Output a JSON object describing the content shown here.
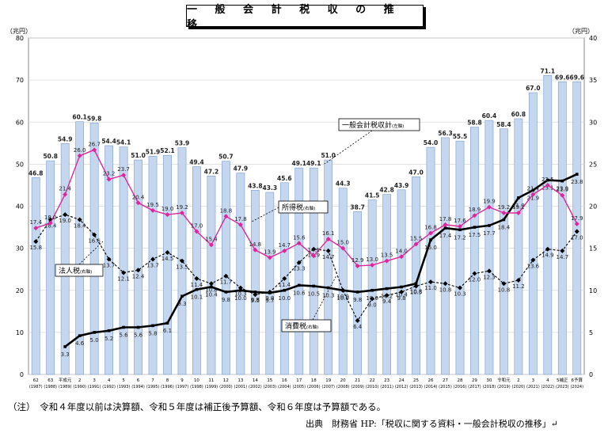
{
  "title": "一 般 会 計 税 収 の 推 移",
  "note": "（注）　令和４年度以前は決算額、令和５年度は補正後予算額、令和６年度は予算額である。",
  "source": "出典　財務省 HP:「税収に関する資料・一般会計税収の推移」↵",
  "colors": {
    "bar_fill": "#c5d7ef",
    "bar_stroke": "#7a9ccc",
    "total_line": "#000000",
    "income_tax_line": "#e0259a",
    "corporate_tax_line": "#000000",
    "consumption_tax_line": "#000000",
    "grid": "#d9d9d9"
  },
  "chart_data": {
    "type": "bar",
    "title": "一 般 会 計 税 収 の 推 移",
    "y_left_unit": "（兆円）",
    "y_right_unit": "（兆円）",
    "y_left_range": [
      0,
      80
    ],
    "y_right_range": [
      0,
      40
    ],
    "y_left_ticks": [
      "0",
      "10",
      "20",
      "30",
      "40",
      "50",
      "60",
      "70",
      "80"
    ],
    "y_right_ticks": [
      "0",
      "5",
      "10",
      "15",
      "20",
      "25",
      "30",
      "35",
      "40"
    ],
    "grid": true,
    "categories": [
      {
        "era": "62",
        "year": "(1987)"
      },
      {
        "era": "63",
        "year": "(1988)"
      },
      {
        "era": "平成元",
        "year": "(1989)"
      },
      {
        "era": "2",
        "year": "(1990)"
      },
      {
        "era": "3",
        "year": "(1991)"
      },
      {
        "era": "4",
        "year": "(1992)"
      },
      {
        "era": "5",
        "year": "(1993)"
      },
      {
        "era": "6",
        "year": "(1994)"
      },
      {
        "era": "7",
        "year": "(1995)"
      },
      {
        "era": "8",
        "year": "(1996)"
      },
      {
        "era": "9",
        "year": "(1997)"
      },
      {
        "era": "10",
        "year": "(1998)"
      },
      {
        "era": "11",
        "year": "(1999)"
      },
      {
        "era": "12",
        "year": "(2000)"
      },
      {
        "era": "13",
        "year": "(2001)"
      },
      {
        "era": "14",
        "year": "(2002)"
      },
      {
        "era": "15",
        "year": "(2003)"
      },
      {
        "era": "16",
        "year": "(2004)"
      },
      {
        "era": "17",
        "year": "(2005)"
      },
      {
        "era": "18",
        "year": "(2006)"
      },
      {
        "era": "19",
        "year": "(2007)"
      },
      {
        "era": "20",
        "year": "(2008)"
      },
      {
        "era": "21",
        "year": "(2009)"
      },
      {
        "era": "22",
        "year": "(2010)"
      },
      {
        "era": "23",
        "year": "(2011)"
      },
      {
        "era": "24",
        "year": "(2012)"
      },
      {
        "era": "25",
        "year": "(2013)"
      },
      {
        "era": "26",
        "year": "(2014)"
      },
      {
        "era": "27",
        "year": "(2015)"
      },
      {
        "era": "28",
        "year": "(2016)"
      },
      {
        "era": "29",
        "year": "(2017)"
      },
      {
        "era": "30",
        "year": "(2018)"
      },
      {
        "era": "令和元",
        "year": "(2019)"
      },
      {
        "era": "2",
        "year": "(2020)"
      },
      {
        "era": "3",
        "year": "(2021)"
      },
      {
        "era": "4",
        "year": "(2022)"
      },
      {
        "era": "5補正",
        "year": "(2023)"
      },
      {
        "era": "6予算",
        "year": "(2024)"
      }
    ],
    "series": [
      {
        "name": "一般会計税収計（左軸）",
        "kind": "bar",
        "axis": "left",
        "values": [
          46.8,
          50.8,
          54.9,
          60.1,
          59.8,
          54.4,
          54.1,
          51.0,
          51.9,
          52.1,
          53.9,
          49.4,
          47.2,
          50.7,
          47.9,
          43.8,
          43.3,
          45.6,
          49.1,
          49.1,
          51.0,
          44.3,
          38.7,
          41.5,
          42.8,
          43.9,
          47.0,
          54.0,
          56.3,
          55.5,
          58.8,
          60.4,
          58.4,
          60.8,
          67.0,
          71.1,
          69.6,
          69.6
        ]
      },
      {
        "name": "所得税（右軸）",
        "kind": "line",
        "axis": "right",
        "values": [
          17.4,
          18.0,
          21.4,
          26.0,
          26.7,
          23.2,
          23.7,
          20.4,
          19.5,
          19.0,
          19.2,
          17.0,
          15.4,
          18.8,
          17.8,
          14.8,
          13.9,
          14.7,
          15.6,
          14.1,
          16.1,
          15.0,
          12.9,
          13.0,
          13.5,
          14.0,
          15.5,
          16.8,
          17.8,
          17.6,
          18.9,
          19.9,
          19.2,
          19.2,
          21.4,
          22.5,
          21.3,
          17.9
        ]
      },
      {
        "name": "法人税（右軸）",
        "kind": "line",
        "axis": "right",
        "values": [
          15.8,
          18.4,
          19.0,
          18.4,
          16.6,
          13.7,
          12.1,
          12.4,
          13.7,
          14.5,
          13.5,
          11.4,
          10.8,
          11.7,
          10.3,
          9.5,
          9.8,
          11.4,
          13.3,
          14.9,
          14.7,
          10.0,
          6.4,
          9.0,
          9.4,
          9.8,
          10.5,
          11.0,
          10.8,
          10.3,
          12.0,
          12.3,
          10.8,
          11.2,
          13.6,
          14.9,
          14.7,
          17.0
        ]
      },
      {
        "name": "消費税（右軸）",
        "kind": "line",
        "axis": "right",
        "values": [
          null,
          null,
          3.3,
          4.6,
          5.0,
          5.2,
          5.6,
          5.6,
          5.8,
          6.1,
          9.3,
          10.1,
          10.4,
          9.8,
          10.0,
          9.8,
          9.7,
          10.0,
          10.6,
          10.5,
          10.3,
          10.0,
          9.8,
          10.0,
          10.2,
          10.4,
          10.8,
          16.0,
          17.4,
          17.2,
          17.5,
          17.7,
          18.4,
          21.0,
          21.9,
          23.1,
          23.0,
          23.8
        ]
      }
    ],
    "legend_labels": {
      "total": "一般会計税収計",
      "total_axis": "(左軸)",
      "income": "所得税",
      "income_axis": "(右軸)",
      "corporate": "法人税",
      "corporate_axis": "(右軸)",
      "consumption": "消費税",
      "consumption_axis": "(右軸)"
    }
  }
}
